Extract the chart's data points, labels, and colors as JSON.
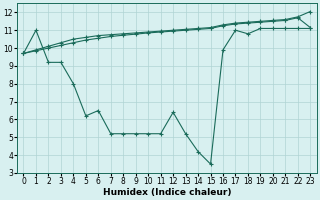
{
  "x_values": [
    0,
    1,
    2,
    3,
    4,
    5,
    6,
    7,
    8,
    9,
    10,
    11,
    12,
    13,
    14,
    15,
    16,
    17,
    18,
    19,
    20,
    21,
    22,
    23
  ],
  "curve1": [
    9.7,
    9.9,
    10.1,
    10.3,
    10.5,
    10.6,
    10.7,
    10.75,
    10.8,
    10.85,
    10.9,
    10.95,
    11.0,
    11.05,
    11.1,
    11.15,
    11.3,
    11.4,
    11.45,
    11.5,
    11.55,
    11.6,
    11.75,
    12.05
  ],
  "curve2": [
    9.7,
    9.85,
    10.0,
    10.15,
    10.3,
    10.45,
    10.55,
    10.65,
    10.72,
    10.78,
    10.85,
    10.9,
    10.95,
    11.0,
    11.05,
    11.1,
    11.25,
    11.35,
    11.4,
    11.45,
    11.5,
    11.55,
    11.7,
    11.15
  ],
  "curve3": [
    9.7,
    11.0,
    9.2,
    9.2,
    8.0,
    6.2,
    6.5,
    5.2,
    5.2,
    5.2,
    5.2,
    5.2,
    6.4,
    5.2,
    4.2,
    3.5,
    9.9,
    11.0,
    10.8,
    11.1,
    11.1,
    11.1,
    11.1,
    11.1
  ],
  "line_color": "#1a6b5a",
  "bg_color": "#d8f0f0",
  "grid_color": "#b0d4d4",
  "xlabel": "Humidex (Indice chaleur)",
  "ylim": [
    3,
    12.5
  ],
  "xlim": [
    -0.5,
    23.5
  ],
  "yticks": [
    3,
    4,
    5,
    6,
    7,
    8,
    9,
    10,
    11,
    12
  ],
  "xticks": [
    0,
    1,
    2,
    3,
    4,
    5,
    6,
    7,
    8,
    9,
    10,
    11,
    12,
    13,
    14,
    15,
    16,
    17,
    18,
    19,
    20,
    21,
    22,
    23
  ],
  "xlabel_fontsize": 6.5,
  "tick_fontsize": 5.5
}
